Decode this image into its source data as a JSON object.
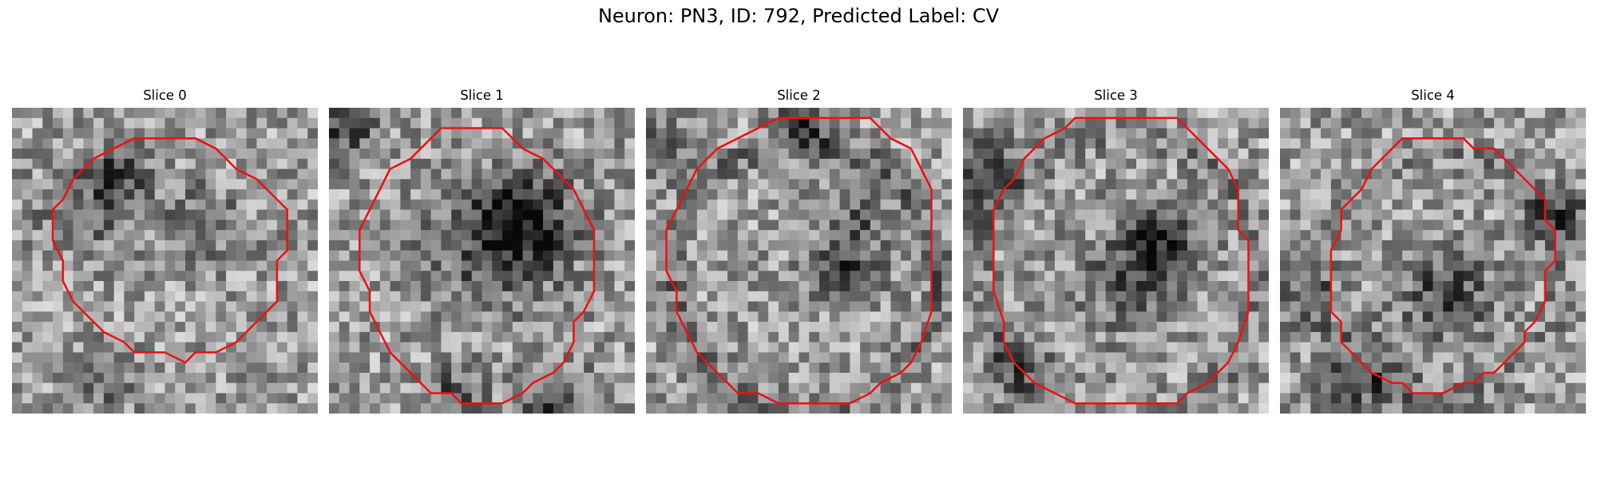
{
  "figure": {
    "title": "Neuron: PN3, ID: 792, Predicted Label: CV"
  },
  "contour_color": "#ee1111",
  "panels": [
    {
      "label": "Slice 0",
      "seed": 11,
      "dark_features": [
        [
          10,
          6,
          2.2,
          0.35
        ],
        [
          6,
          10,
          3.0,
          0.22
        ],
        [
          18,
          11,
          3.0,
          0.2
        ],
        [
          8,
          26,
          2.2,
          0.25
        ]
      ],
      "contour": [
        [
          16,
          3
        ],
        [
          18,
          3
        ],
        [
          20,
          4
        ],
        [
          22,
          6
        ],
        [
          24,
          7
        ],
        [
          26,
          9
        ],
        [
          27,
          10
        ],
        [
          27,
          14
        ],
        [
          26,
          15
        ],
        [
          26,
          19
        ],
        [
          25,
          20
        ],
        [
          24,
          21
        ],
        [
          23,
          22
        ],
        [
          22,
          23
        ],
        [
          20,
          24
        ],
        [
          18,
          24
        ],
        [
          17,
          25
        ],
        [
          15,
          24
        ],
        [
          12,
          24
        ],
        [
          11,
          23
        ],
        [
          9,
          22
        ],
        [
          8,
          21
        ],
        [
          7,
          20
        ],
        [
          6,
          19
        ],
        [
          5,
          17
        ],
        [
          5,
          15
        ],
        [
          4,
          13
        ],
        [
          4,
          10
        ],
        [
          5,
          9
        ],
        [
          6,
          7
        ],
        [
          8,
          5
        ],
        [
          10,
          4
        ],
        [
          12,
          3
        ],
        [
          14,
          3
        ]
      ]
    },
    {
      "label": "Slice 1",
      "seed": 23,
      "dark_features": [
        [
          19,
          11,
          3.5,
          0.4
        ],
        [
          15,
          13,
          4.5,
          0.25
        ],
        [
          1,
          1,
          2.5,
          0.35
        ],
        [
          22,
          29,
          2.5,
          0.35
        ],
        [
          12,
          28,
          2.0,
          0.3
        ]
      ],
      "contour": [
        [
          11,
          2
        ],
        [
          17,
          2
        ],
        [
          18,
          3
        ],
        [
          19,
          4
        ],
        [
          21,
          5
        ],
        [
          22,
          6
        ],
        [
          24,
          8
        ],
        [
          25,
          10
        ],
        [
          26,
          12
        ],
        [
          26,
          18
        ],
        [
          25,
          20
        ],
        [
          24,
          21
        ],
        [
          24,
          23
        ],
        [
          23,
          25
        ],
        [
          22,
          26
        ],
        [
          20,
          27
        ],
        [
          19,
          28
        ],
        [
          17,
          29
        ],
        [
          16,
          29
        ],
        [
          13,
          29
        ],
        [
          12,
          28
        ],
        [
          10,
          28
        ],
        [
          9,
          27
        ],
        [
          8,
          26
        ],
        [
          7,
          25
        ],
        [
          6,
          24
        ],
        [
          5,
          22
        ],
        [
          4,
          20
        ],
        [
          4,
          18
        ],
        [
          3,
          16
        ],
        [
          3,
          12
        ],
        [
          4,
          10
        ],
        [
          5,
          8
        ],
        [
          6,
          6
        ],
        [
          8,
          5
        ],
        [
          9,
          4
        ],
        [
          10,
          3
        ]
      ]
    },
    {
      "label": "Slice 2",
      "seed": 37,
      "dark_features": [
        [
          19,
          15,
          2.5,
          0.35
        ],
        [
          15,
          1,
          1.8,
          0.4
        ],
        [
          0,
          4,
          2.0,
          0.3
        ],
        [
          20,
          10,
          2.0,
          0.2
        ]
      ],
      "ring": [
        15,
        16,
        13,
        0.18
      ],
      "contour": [
        [
          13,
          1
        ],
        [
          22,
          1
        ],
        [
          23,
          2
        ],
        [
          24,
          3
        ],
        [
          26,
          4
        ],
        [
          27,
          6
        ],
        [
          28,
          8
        ],
        [
          28,
          12
        ],
        [
          28,
          20
        ],
        [
          27,
          23
        ],
        [
          26,
          25
        ],
        [
          25,
          26
        ],
        [
          23,
          27
        ],
        [
          22,
          28
        ],
        [
          20,
          29
        ],
        [
          18,
          29
        ],
        [
          16,
          29
        ],
        [
          13,
          29
        ],
        [
          11,
          28
        ],
        [
          9,
          28
        ],
        [
          8,
          27
        ],
        [
          7,
          26
        ],
        [
          6,
          25
        ],
        [
          5,
          24
        ],
        [
          4,
          22
        ],
        [
          3,
          20
        ],
        [
          3,
          18
        ],
        [
          2,
          16
        ],
        [
          2,
          12
        ],
        [
          3,
          10
        ],
        [
          4,
          8
        ],
        [
          5,
          6
        ],
        [
          6,
          5
        ],
        [
          7,
          4
        ],
        [
          9,
          3
        ],
        [
          11,
          2
        ]
      ]
    },
    {
      "label": "Slice 3",
      "seed": 51,
      "dark_features": [
        [
          19,
          13,
          2.8,
          0.45
        ],
        [
          15,
          17,
          3.5,
          0.2
        ],
        [
          1,
          6,
          2.5,
          0.4
        ],
        [
          5,
          25,
          2.5,
          0.25
        ]
      ],
      "ring": [
        15,
        16,
        14,
        0.12
      ],
      "contour": [
        [
          11,
          1
        ],
        [
          21,
          1
        ],
        [
          22,
          2
        ],
        [
          23,
          3
        ],
        [
          24,
          4
        ],
        [
          25,
          5
        ],
        [
          26,
          6
        ],
        [
          27,
          8
        ],
        [
          27,
          12
        ],
        [
          28,
          13
        ],
        [
          28,
          20
        ],
        [
          27,
          23
        ],
        [
          26,
          25
        ],
        [
          25,
          26
        ],
        [
          24,
          27
        ],
        [
          22,
          28
        ],
        [
          21,
          29
        ],
        [
          11,
          29
        ],
        [
          9,
          28
        ],
        [
          7,
          27
        ],
        [
          6,
          26
        ],
        [
          5,
          25
        ],
        [
          4,
          23
        ],
        [
          4,
          21
        ],
        [
          3,
          18
        ],
        [
          3,
          10
        ],
        [
          4,
          8
        ],
        [
          5,
          7
        ],
        [
          6,
          5
        ],
        [
          7,
          4
        ],
        [
          8,
          3
        ],
        [
          10,
          2
        ]
      ]
    },
    {
      "label": "Slice 4",
      "seed": 67,
      "dark_features": [
        [
          16,
          18,
          3.0,
          0.35
        ],
        [
          8,
          26,
          3.0,
          0.3
        ],
        [
          27,
          10,
          2.2,
          0.3
        ],
        [
          2,
          18,
          2.2,
          0.25
        ]
      ],
      "ring": [
        15,
        16,
        12,
        0.1
      ],
      "contour": [
        [
          12,
          3
        ],
        [
          18,
          3
        ],
        [
          19,
          4
        ],
        [
          21,
          4
        ],
        [
          22,
          5
        ],
        [
          23,
          6
        ],
        [
          24,
          7
        ],
        [
          25,
          8
        ],
        [
          26,
          9
        ],
        [
          26,
          11
        ],
        [
          27,
          12
        ],
        [
          27,
          15
        ],
        [
          26,
          16
        ],
        [
          26,
          19
        ],
        [
          25,
          21
        ],
        [
          24,
          22
        ],
        [
          24,
          23
        ],
        [
          23,
          24
        ],
        [
          22,
          25
        ],
        [
          21,
          26
        ],
        [
          20,
          26
        ],
        [
          19,
          27
        ],
        [
          18,
          27
        ],
        [
          16,
          28
        ],
        [
          13,
          28
        ],
        [
          12,
          27
        ],
        [
          11,
          27
        ],
        [
          9,
          26
        ],
        [
          8,
          25
        ],
        [
          7,
          24
        ],
        [
          6,
          23
        ],
        [
          6,
          21
        ],
        [
          5,
          20
        ],
        [
          5,
          17
        ],
        [
          5,
          14
        ],
        [
          6,
          12
        ],
        [
          6,
          10
        ],
        [
          7,
          9
        ],
        [
          8,
          8
        ],
        [
          9,
          6
        ],
        [
          10,
          5
        ],
        [
          11,
          4
        ]
      ]
    }
  ]
}
